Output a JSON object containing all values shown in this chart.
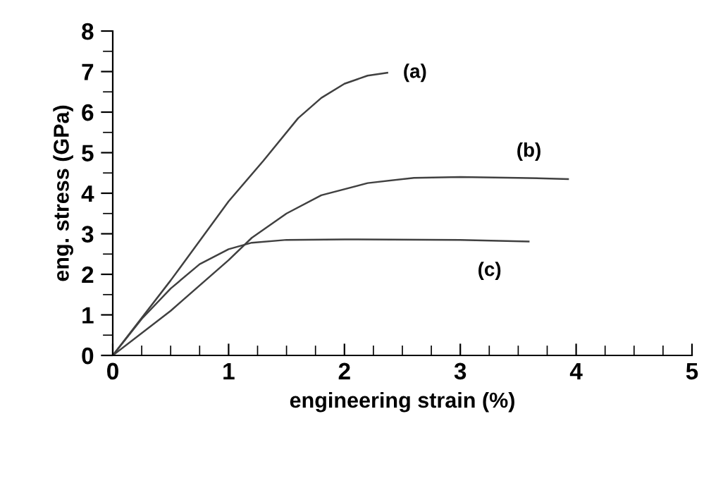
{
  "chart_data": {
    "type": "line",
    "xlabel": "engineering strain (%)",
    "ylabel": "eng. stress (GPa)",
    "xlim": [
      0,
      5
    ],
    "xticks": [
      0,
      1,
      2,
      3,
      4,
      5
    ],
    "ylim": [
      0,
      8
    ],
    "yticks": [
      0,
      1,
      2,
      3,
      4,
      5,
      6,
      7,
      8
    ],
    "grid": false,
    "marker": "none",
    "line_style": "solid",
    "series": [
      {
        "name": "(a)",
        "color": "#404040",
        "x": [
          0,
          0.5,
          1.0,
          1.3,
          1.6,
          1.8,
          2.0,
          2.2,
          2.37
        ],
        "values": [
          0,
          1.85,
          3.8,
          4.8,
          5.85,
          6.35,
          6.7,
          6.9,
          6.97
        ]
      },
      {
        "name": "(b)",
        "color": "#404040",
        "x": [
          0,
          0.5,
          1.0,
          1.2,
          1.5,
          1.8,
          2.2,
          2.6,
          3.0,
          3.5,
          3.93
        ],
        "values": [
          0,
          1.1,
          2.35,
          2.9,
          3.5,
          3.95,
          4.25,
          4.38,
          4.4,
          4.38,
          4.35
        ]
      },
      {
        "name": "(c)",
        "color": "#404040",
        "x": [
          0,
          0.25,
          0.5,
          0.75,
          1.0,
          1.2,
          1.5,
          2.0,
          3.0,
          3.59
        ],
        "values": [
          0,
          0.9,
          1.65,
          2.25,
          2.62,
          2.78,
          2.85,
          2.86,
          2.85,
          2.81
        ]
      }
    ]
  }
}
